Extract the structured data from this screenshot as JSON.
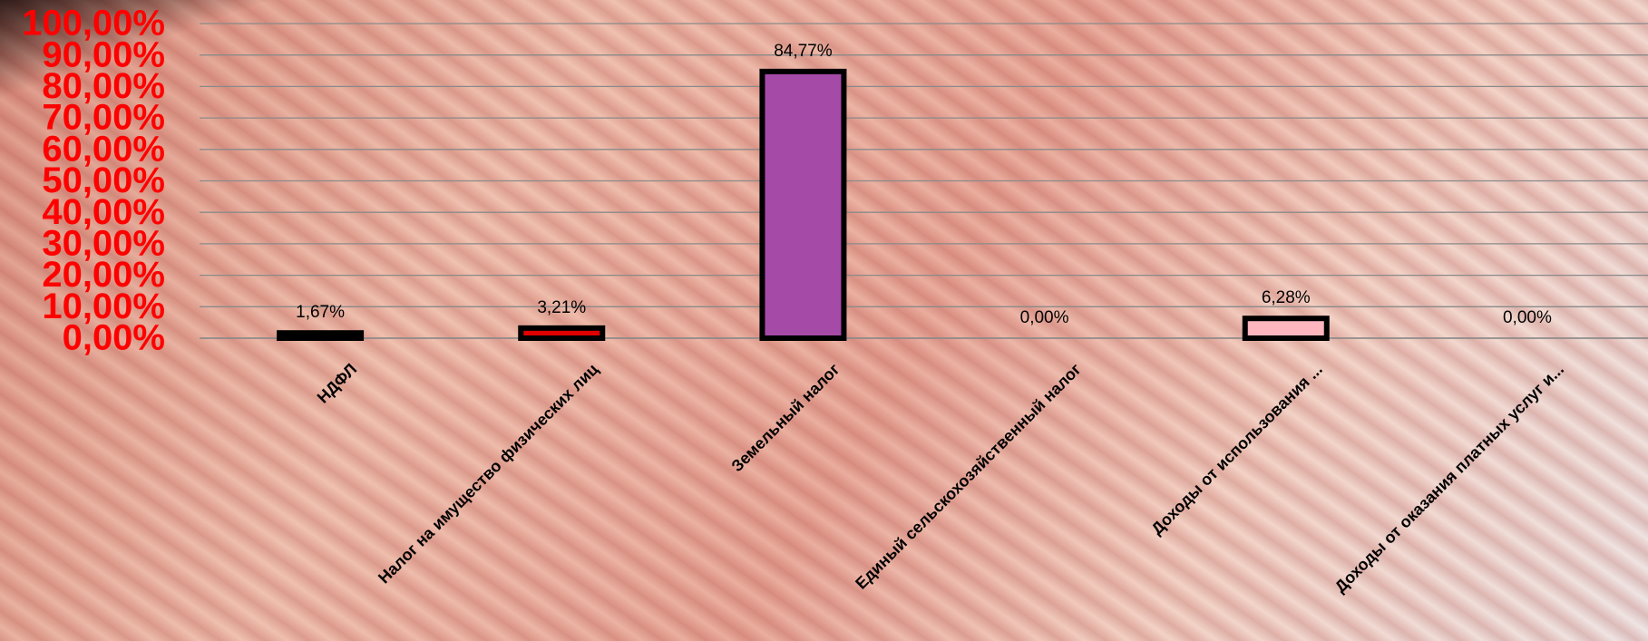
{
  "chart_data": {
    "type": "bar",
    "categories": [
      "НДФЛ",
      "Налог на имущество  физических  лиц",
      "Земельный  налог",
      "Единый сельскохозяйственный  налог",
      "Доходы  от использования ...",
      "Доходы  от оказания  платных услуг и..."
    ],
    "values": [
      1.67,
      3.21,
      84.77,
      0,
      6.28,
      0
    ],
    "value_labels": [
      "1,67%",
      "3,21%",
      "84,77%",
      "0,00%",
      "6,28%",
      "0,00%"
    ],
    "colors": [
      "#111111",
      "#e00000",
      "#a64aa8",
      "#999999",
      "#ffb6bf",
      "#999999"
    ],
    "ylim": [
      0,
      100
    ],
    "yticks": [
      {
        "value": 0,
        "label": "0,00%"
      },
      {
        "value": 10,
        "label": "10,00%"
      },
      {
        "value": 20,
        "label": "20,00%"
      },
      {
        "value": 30,
        "label": "30,00%"
      },
      {
        "value": 40,
        "label": "40,00%"
      },
      {
        "value": 50,
        "label": "50,00%"
      },
      {
        "value": 60,
        "label": "60,00%"
      },
      {
        "value": 70,
        "label": "70,00%"
      },
      {
        "value": 80,
        "label": "80,00%"
      },
      {
        "value": 90,
        "label": "90,00%"
      },
      {
        "value": 100,
        "label": "100,00%"
      }
    ],
    "grid": true
  }
}
